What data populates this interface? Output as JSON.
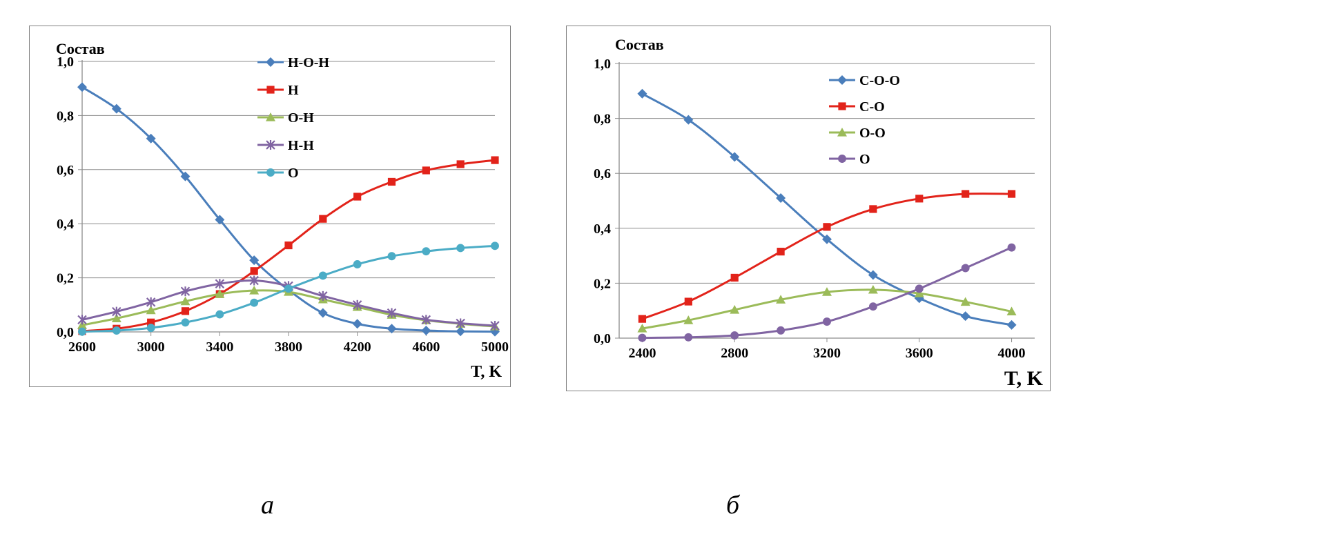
{
  "chart_data": [
    {
      "type": "line",
      "title": "",
      "ylabel": "Состав",
      "xlabel": "T, K",
      "xlim": [
        2600,
        5000
      ],
      "ylim": [
        0,
        1.0
      ],
      "xticks": [
        "2600",
        "3000",
        "3400",
        "3800",
        "4200",
        "4600",
        "5000"
      ],
      "yticks": [
        "0,0",
        "0,2",
        "0,4",
        "0,6",
        "0,8",
        "1,0"
      ],
      "grid": "horizontal",
      "legend_position": "top-center",
      "x": [
        2600,
        2800,
        3000,
        3200,
        3400,
        3600,
        3800,
        4000,
        4200,
        4400,
        4600,
        4800,
        5000
      ],
      "series": [
        {
          "name": "H-O-H",
          "color": "#4a7ebb",
          "marker": "diamond",
          "values": [
            0.905,
            0.825,
            0.715,
            0.575,
            0.415,
            0.265,
            0.155,
            0.07,
            0.03,
            0.012,
            0.005,
            0.002,
            0.001
          ]
        },
        {
          "name": "H",
          "color": "#e2231a",
          "marker": "square",
          "values": [
            0.003,
            0.012,
            0.035,
            0.077,
            0.14,
            0.225,
            0.32,
            0.418,
            0.5,
            0.555,
            0.597,
            0.62,
            0.635
          ]
        },
        {
          "name": "O-H",
          "color": "#9bbb59",
          "marker": "triangle",
          "values": [
            0.025,
            0.05,
            0.08,
            0.113,
            0.14,
            0.153,
            0.148,
            0.12,
            0.092,
            0.063,
            0.043,
            0.03,
            0.02
          ]
        },
        {
          "name": "H-H",
          "color": "#8064a2",
          "marker": "star",
          "values": [
            0.045,
            0.075,
            0.11,
            0.15,
            0.178,
            0.19,
            0.17,
            0.133,
            0.1,
            0.07,
            0.045,
            0.032,
            0.023
          ]
        },
        {
          "name": "O",
          "color": "#4bacc6",
          "marker": "circle",
          "values": [
            0.001,
            0.005,
            0.015,
            0.035,
            0.065,
            0.108,
            0.16,
            0.208,
            0.25,
            0.28,
            0.298,
            0.31,
            0.318
          ]
        }
      ],
      "caption": "a"
    },
    {
      "type": "line",
      "title": "",
      "ylabel": "Состав",
      "xlabel": "T, K",
      "xlim": [
        2300,
        4100
      ],
      "ylim": [
        0,
        1.0
      ],
      "xticks": [
        "2400",
        "2800",
        "3200",
        "3600",
        "4000"
      ],
      "yticks": [
        "0,0",
        "0,2",
        "0,4",
        "0,6",
        "0,8",
        "1,0"
      ],
      "grid": "horizontal",
      "legend_position": "top-center",
      "x": [
        2400,
        2600,
        2800,
        3000,
        3200,
        3400,
        3600,
        3800,
        4000
      ],
      "series": [
        {
          "name": "C-O-O",
          "color": "#4a7ebb",
          "marker": "diamond",
          "values": [
            0.89,
            0.795,
            0.66,
            0.51,
            0.36,
            0.23,
            0.145,
            0.08,
            0.048
          ]
        },
        {
          "name": "C-O",
          "color": "#e2231a",
          "marker": "square",
          "values": [
            0.07,
            0.133,
            0.22,
            0.315,
            0.405,
            0.47,
            0.508,
            0.525,
            0.525
          ]
        },
        {
          "name": "O-O",
          "color": "#9bbb59",
          "marker": "triangle",
          "values": [
            0.035,
            0.065,
            0.103,
            0.14,
            0.168,
            0.176,
            0.163,
            0.132,
            0.097
          ]
        },
        {
          "name": "O",
          "color": "#8064a2",
          "marker": "circle",
          "values": [
            0.001,
            0.003,
            0.01,
            0.028,
            0.06,
            0.115,
            0.18,
            0.255,
            0.33
          ]
        }
      ],
      "caption": "б"
    }
  ]
}
